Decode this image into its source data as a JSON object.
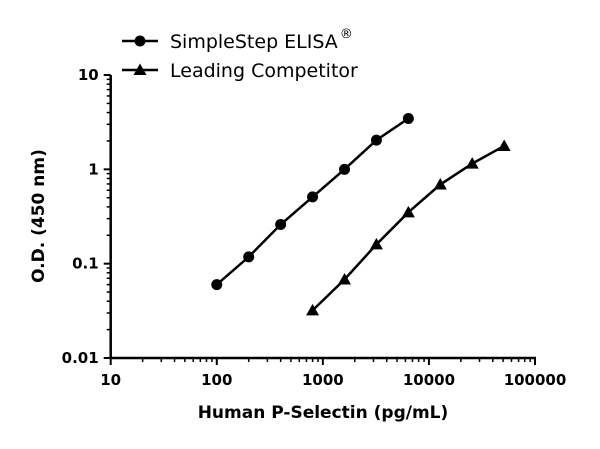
{
  "chart_data": {
    "type": "line",
    "title": "",
    "xlabel": "Human P-Selectin (pg/mL)",
    "ylabel": "O.D. (450 nm)",
    "x_scale": "log",
    "y_scale": "log",
    "xlim": [
      10,
      100000
    ],
    "ylim": [
      0.01,
      10
    ],
    "x_ticks": [
      "10",
      "100",
      "1000",
      "10000",
      "100000"
    ],
    "y_ticks": [
      "0.01",
      "0.1",
      "1",
      "10"
    ],
    "grid": false,
    "legend_position": "top-left",
    "series": [
      {
        "name": "SimpleStep ELISA",
        "superscript": "®",
        "marker": "circle",
        "color": "#000000",
        "x": [
          100,
          200,
          400,
          800,
          1600,
          3200,
          6400
        ],
        "y": [
          0.06,
          0.118,
          0.26,
          0.51,
          1.0,
          2.04,
          3.46
        ]
      },
      {
        "name": "Leading Competitor",
        "marker": "triangle",
        "color": "#000000",
        "x": [
          800,
          1600,
          3200,
          6400,
          12800,
          25600,
          51200
        ],
        "y": [
          0.032,
          0.068,
          0.16,
          0.35,
          0.69,
          1.15,
          1.77
        ]
      }
    ]
  }
}
